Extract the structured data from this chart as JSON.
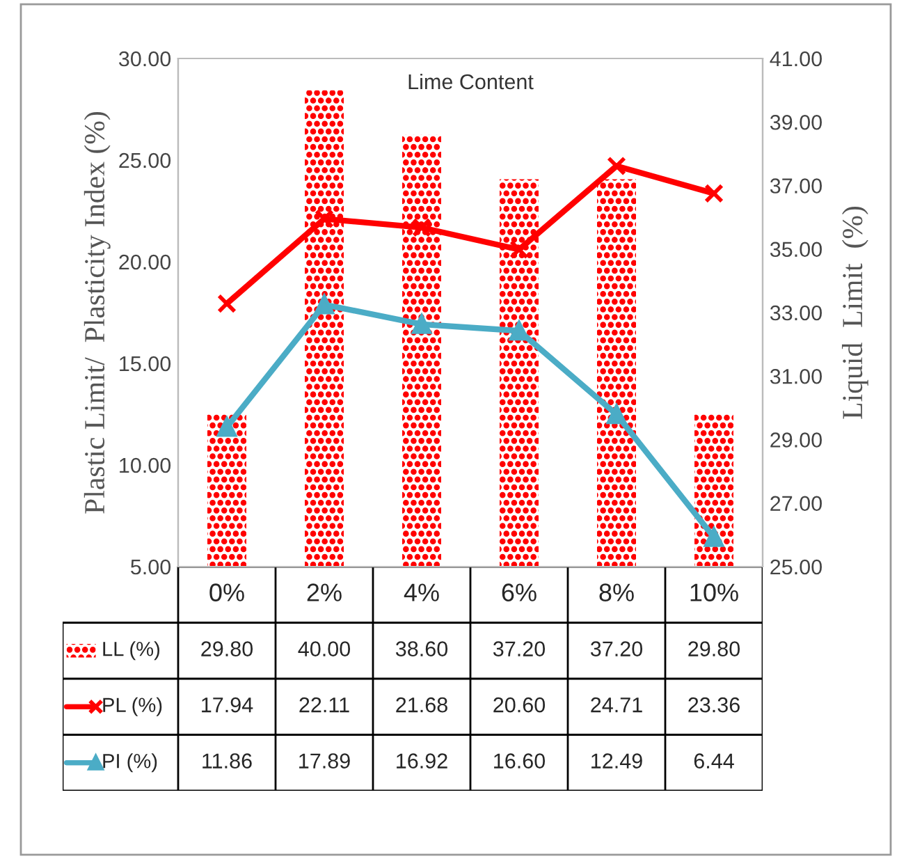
{
  "chart_data": {
    "type": "bar",
    "title": "Lime Content",
    "ylabel": "Plastic Limit/  Plasticity Index (%)",
    "y2label": "Liquid  Limit  (%)",
    "categories": [
      "0%",
      "2%",
      "4%",
      "6%",
      "8%",
      "10%"
    ],
    "series": [
      {
        "name": "LL (%)",
        "axis": "y2",
        "color": "#ff0000",
        "values": [
          29.8,
          40.0,
          38.6,
          37.2,
          37.2,
          29.8
        ],
        "value_labels": [
          "29.80",
          "40.00",
          "38.60",
          "37.20",
          "37.20",
          "29.80"
        ]
      },
      {
        "name": "PL (%)",
        "type": "line",
        "color": "#ff0000",
        "marker": "cross",
        "values": [
          17.94,
          22.11,
          21.68,
          20.6,
          24.71,
          23.36
        ],
        "value_labels": [
          "17.94",
          "22.11",
          "21.68",
          "20.60",
          "24.71",
          "23.36"
        ]
      },
      {
        "name": "PI (%)",
        "type": "line",
        "color": "#4bacc6",
        "marker": "triangle",
        "values": [
          11.86,
          17.89,
          16.92,
          16.6,
          12.49,
          6.44
        ],
        "value_labels": [
          "11.86",
          "17.89",
          "16.92",
          "16.60",
          "12.49",
          "6.44"
        ]
      }
    ],
    "ylim": [
      5,
      30
    ],
    "yticks": [
      {
        "value": 5,
        "label": "5.00"
      },
      {
        "value": 10,
        "label": "10.00"
      },
      {
        "value": 15,
        "label": "15.00"
      },
      {
        "value": 20,
        "label": "20.00"
      },
      {
        "value": 25,
        "label": "25.00"
      },
      {
        "value": 30,
        "label": "30.00"
      }
    ],
    "y2lim": [
      25,
      41
    ],
    "y2ticks": [
      {
        "value": 25,
        "label": "25.00"
      },
      {
        "value": 27,
        "label": "27.00"
      },
      {
        "value": 29,
        "label": "29.00"
      },
      {
        "value": 31,
        "label": "31.00"
      },
      {
        "value": 33,
        "label": "33.00"
      },
      {
        "value": 35,
        "label": "35.00"
      },
      {
        "value": 37,
        "label": "37.00"
      },
      {
        "value": 39,
        "label": "39.00"
      },
      {
        "value": 41,
        "label": "41.00"
      }
    ],
    "grid": false,
    "legend": "bottom",
    "line_style": "solid"
  }
}
